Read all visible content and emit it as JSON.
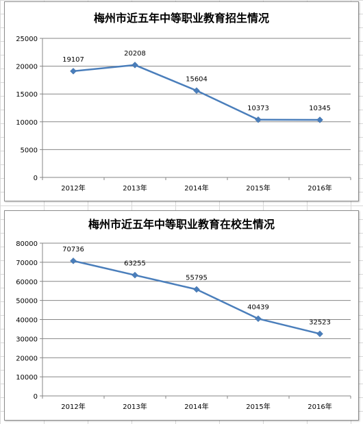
{
  "colors": {
    "series": "#4a7ebb",
    "grid": "#858585"
  },
  "chart_data": [
    {
      "type": "line",
      "title": "梅州市近五年中等职业教育招生情况",
      "categories": [
        "2012年",
        "2013年",
        "2014年",
        "2015年",
        "2016年"
      ],
      "values": [
        19107,
        20208,
        15604,
        10373,
        10345
      ],
      "value_labels": [
        "19107",
        "20208",
        "15604",
        "10373",
        "10345"
      ],
      "y_ticks": [
        "0",
        "5000",
        "10000",
        "15000",
        "20000",
        "25000"
      ],
      "ylim": [
        0,
        25000
      ],
      "grid": true,
      "legend": "none"
    },
    {
      "type": "line",
      "title": "梅州市近五年中等职业教育在校生情况",
      "categories": [
        "2012年",
        "2013年",
        "2014年",
        "2015年",
        "2016年"
      ],
      "values": [
        70736,
        63255,
        55795,
        40439,
        32523
      ],
      "value_labels": [
        "70736",
        "63255",
        "55795",
        "40439",
        "32523"
      ],
      "y_ticks": [
        "0",
        "10000",
        "20000",
        "30000",
        "40000",
        "50000",
        "60000",
        "70000",
        "80000"
      ],
      "ylim": [
        0,
        80000
      ],
      "grid": true,
      "legend": "none"
    }
  ]
}
